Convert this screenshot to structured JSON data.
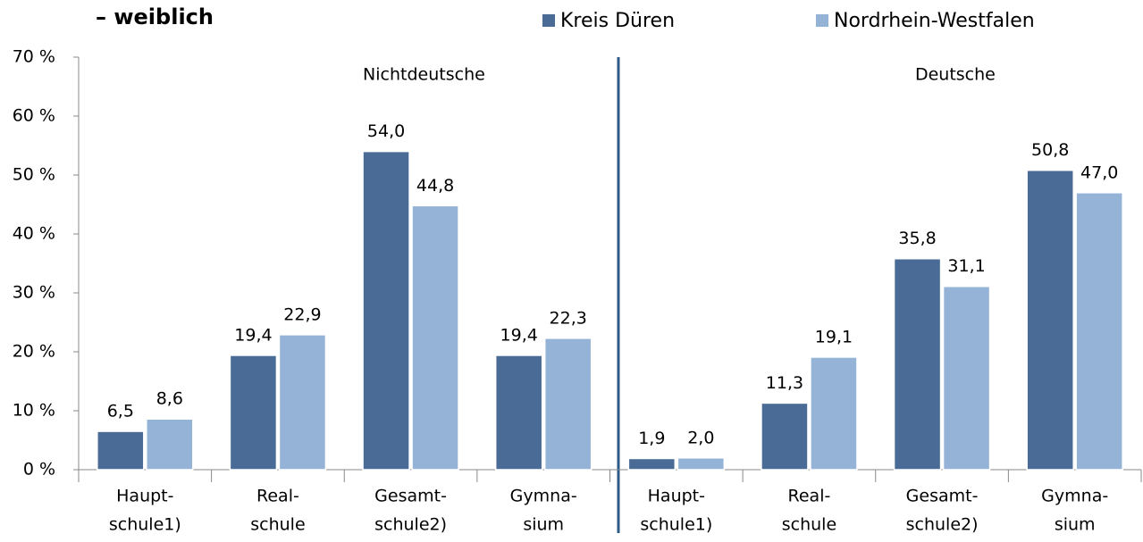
{
  "chart_data": {
    "type": "bar",
    "title": "– weiblich",
    "group_labels": [
      "Nichtdeutsche",
      "Deutsche"
    ],
    "categories": [
      [
        "Haupt-",
        "schule1)"
      ],
      [
        "Real-",
        "schule"
      ],
      [
        "Gesamt-",
        "schule2)"
      ],
      [
        "Gymna-",
        "sium"
      ],
      [
        "Haupt-",
        "schule1)"
      ],
      [
        "Real-",
        "schule"
      ],
      [
        "Gesamt-",
        "schule2)"
      ],
      [
        "Gymna-",
        "sium"
      ]
    ],
    "series": [
      {
        "name": "Kreis Düren",
        "color": "#4a6b96",
        "values": [
          6.5,
          19.4,
          54.0,
          19.4,
          1.9,
          11.3,
          35.8,
          50.8
        ],
        "value_labels": [
          "6,5",
          "19,4",
          "54,0",
          "19,4",
          "1,9",
          "11,3",
          "35,8",
          "50,8"
        ]
      },
      {
        "name": "Nordrhein-Westfalen",
        "color": "#95b3d7",
        "values": [
          8.6,
          22.9,
          44.8,
          22.3,
          2.0,
          19.1,
          31.1,
          47.0
        ],
        "value_labels": [
          "8,6",
          "22,9",
          "44,8",
          "22,3",
          "2,0",
          "19,1",
          "31,1",
          "47,0"
        ]
      }
    ],
    "ylim": [
      0,
      70
    ],
    "yticks": [
      {
        "value": 0,
        "label": "0 %"
      },
      {
        "value": 10,
        "label": "10 %"
      },
      {
        "value": 20,
        "label": "20 %"
      },
      {
        "value": 30,
        "label": "30 %"
      },
      {
        "value": 40,
        "label": "40 %"
      },
      {
        "value": 50,
        "label": "50 %"
      },
      {
        "value": 60,
        "label": "60 %"
      },
      {
        "value": 70,
        "label": "70 %"
      }
    ],
    "legend": "top"
  }
}
